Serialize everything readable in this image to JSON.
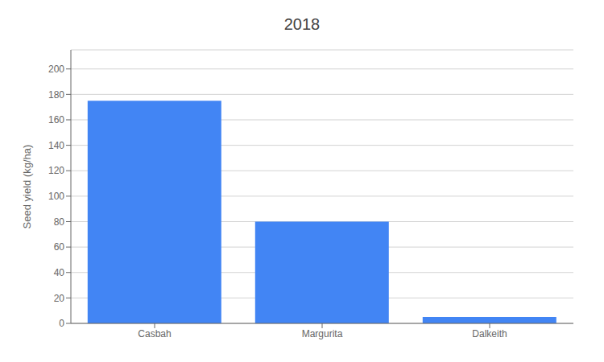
{
  "chart_data": {
    "type": "bar",
    "title": "2018",
    "categories": [
      "Casbah",
      "Margurita",
      "Dalkeith"
    ],
    "values": [
      175,
      80,
      5
    ],
    "color": "#4285F4",
    "ylabel": "Seed yield (kg/ha)",
    "ylim": [
      0,
      215
    ],
    "yticks": [
      0,
      20,
      40,
      60,
      80,
      100,
      120,
      140,
      160,
      180,
      200
    ],
    "grid": true
  }
}
